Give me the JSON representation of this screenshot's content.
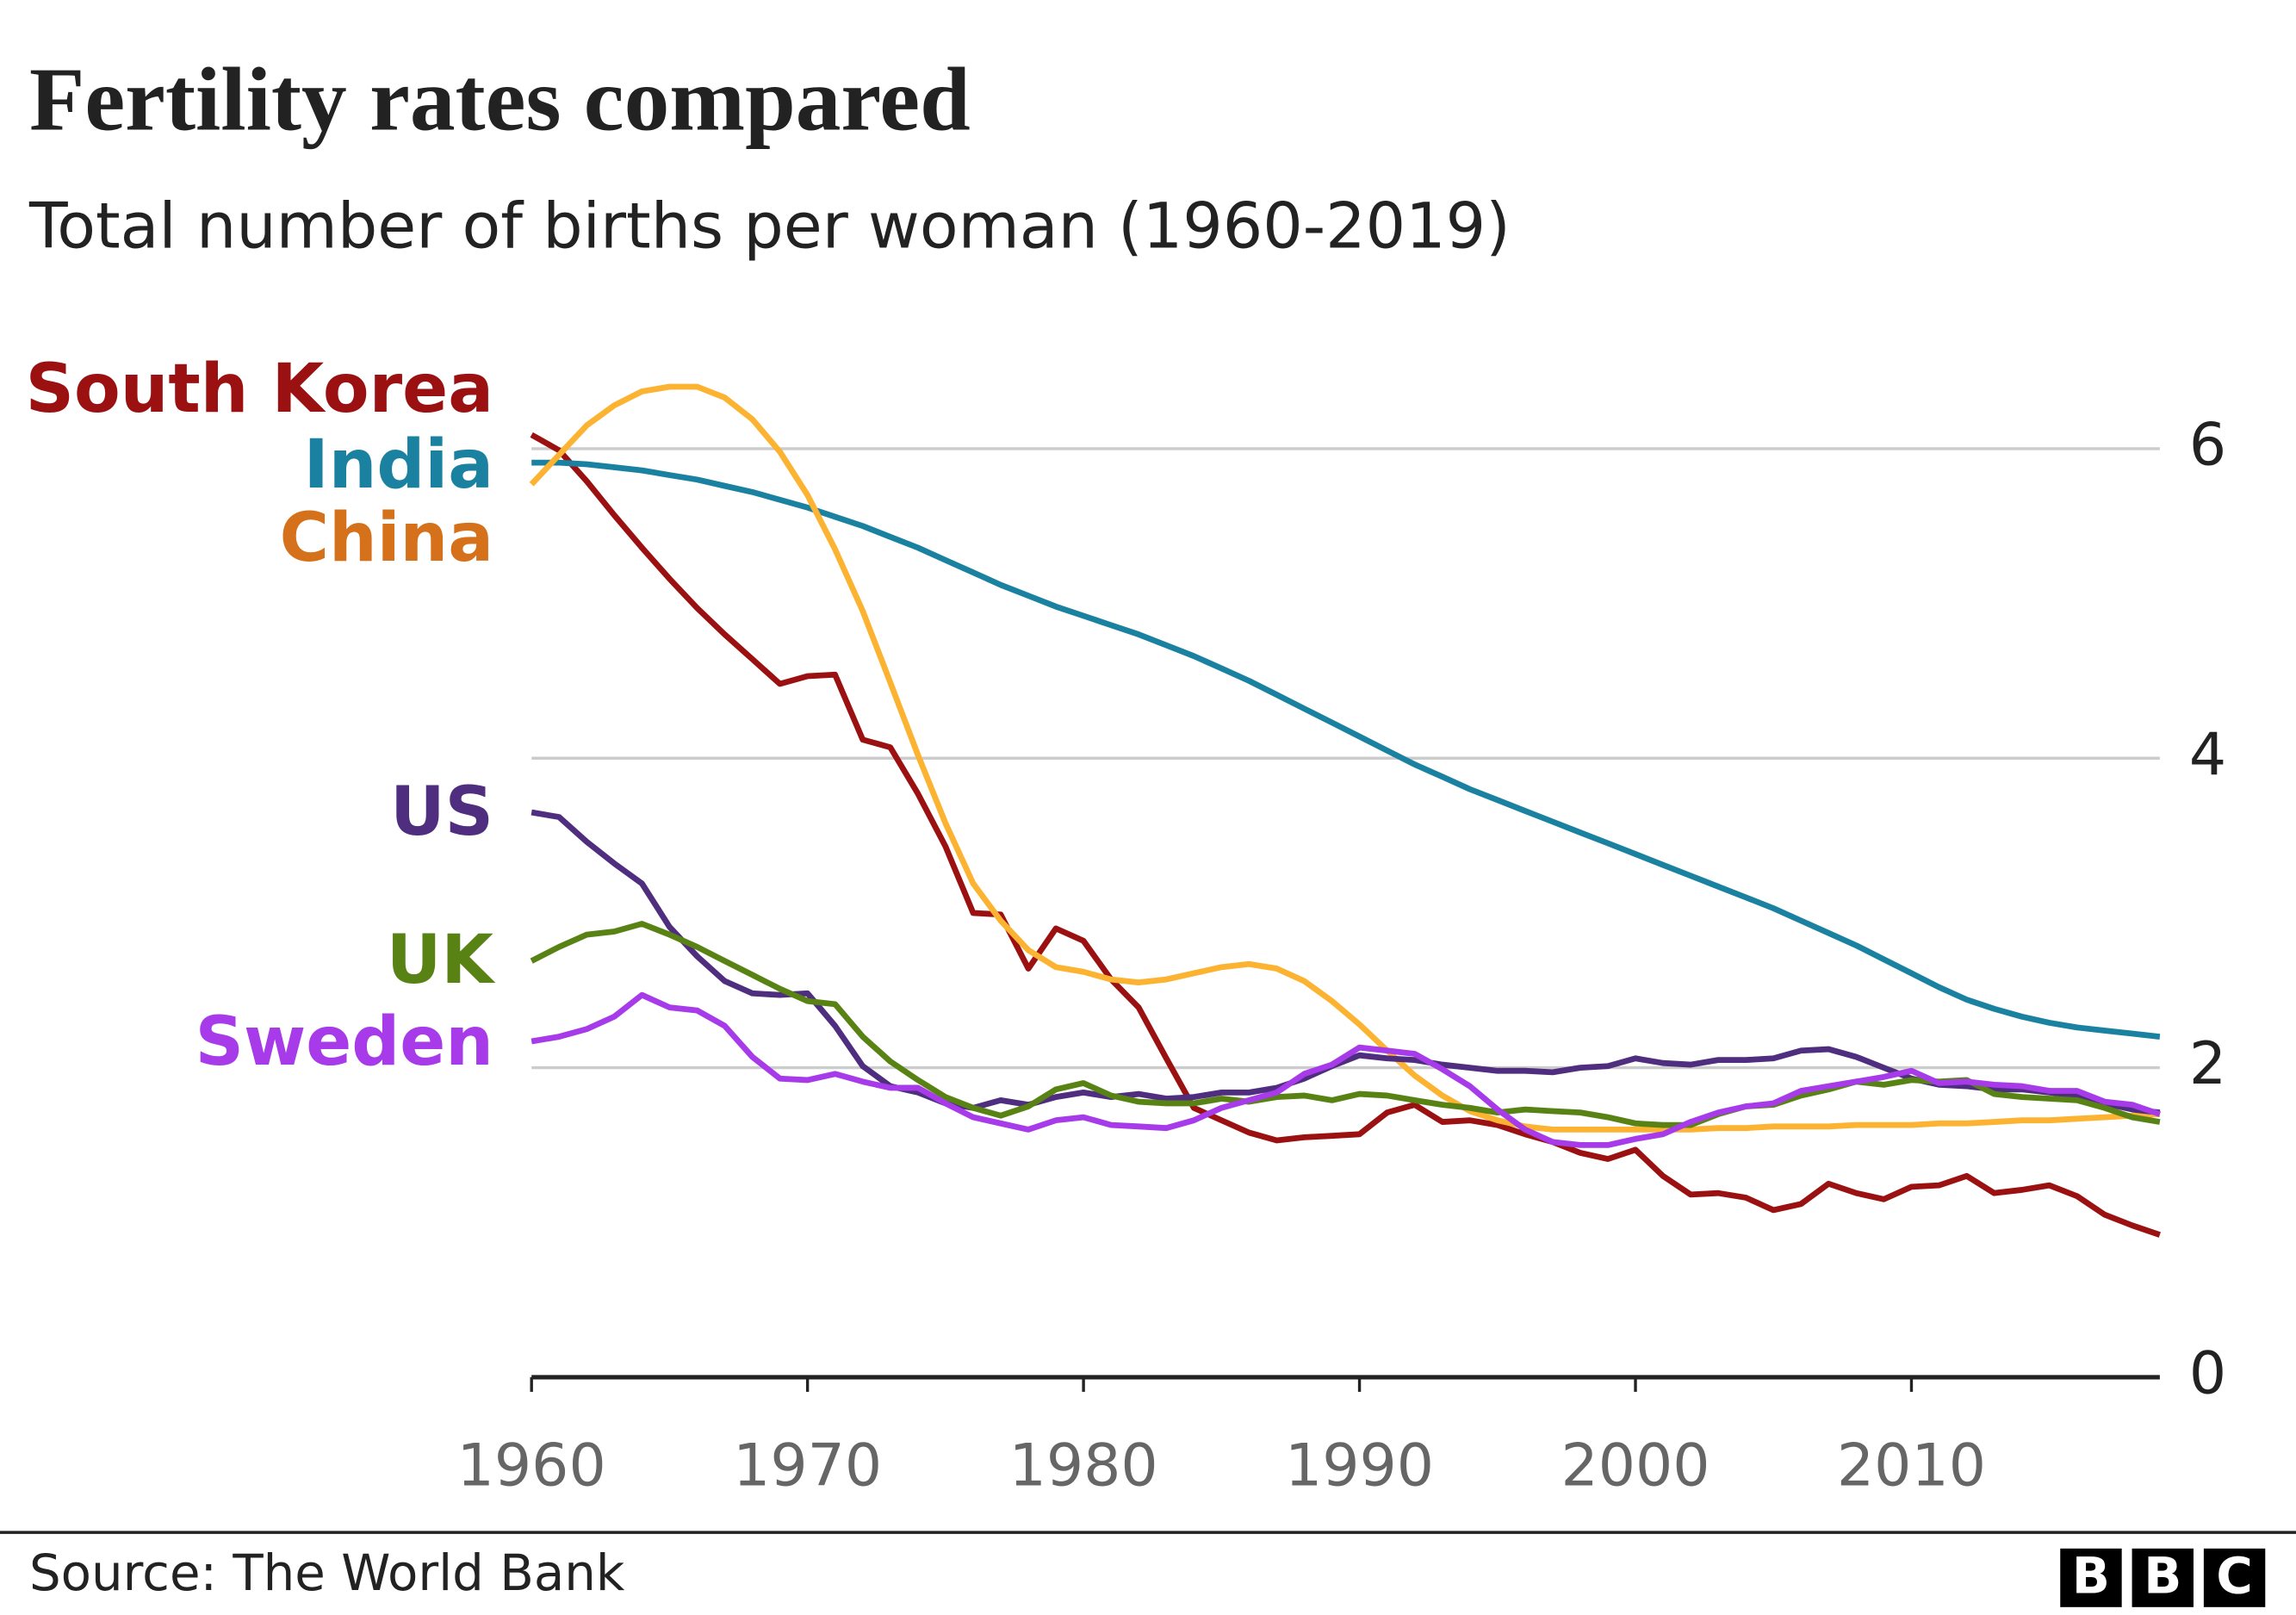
{
  "chart_data": {
    "type": "line",
    "title": "Fertility rates compared",
    "subtitle": "Total number of births per woman (1960-2019)",
    "source": "Source: The World Bank",
    "logo": [
      "B",
      "B",
      "C"
    ],
    "x": [
      1960,
      1961,
      1962,
      1963,
      1964,
      1965,
      1966,
      1967,
      1968,
      1969,
      1970,
      1971,
      1972,
      1973,
      1974,
      1975,
      1976,
      1977,
      1978,
      1979,
      1980,
      1981,
      1982,
      1983,
      1984,
      1985,
      1986,
      1987,
      1988,
      1989,
      1990,
      1991,
      1992,
      1993,
      1994,
      1995,
      1996,
      1997,
      1998,
      1999,
      2000,
      2001,
      2002,
      2003,
      2004,
      2005,
      2006,
      2007,
      2008,
      2009,
      2010,
      2011,
      2012,
      2013,
      2014,
      2015,
      2016,
      2017,
      2018,
      2019
    ],
    "xlim": [
      1960,
      2019
    ],
    "xticks": [
      1960,
      1970,
      1980,
      1990,
      2000,
      2010
    ],
    "ylim": [
      0,
      6
    ],
    "yticks": [
      0,
      2,
      4,
      6
    ],
    "grid": true,
    "series": [
      {
        "name": "South Korea",
        "color": "#9b1111",
        "values": [
          6.09,
          5.99,
          5.79,
          5.57,
          5.36,
          5.16,
          4.97,
          4.8,
          4.64,
          4.48,
          4.53,
          4.54,
          4.12,
          4.07,
          3.77,
          3.43,
          3.0,
          2.99,
          2.64,
          2.9,
          2.82,
          2.57,
          2.39,
          2.06,
          1.74,
          1.66,
          1.58,
          1.53,
          1.55,
          1.56,
          1.57,
          1.71,
          1.76,
          1.65,
          1.66,
          1.63,
          1.57,
          1.52,
          1.45,
          1.41,
          1.47,
          1.3,
          1.18,
          1.19,
          1.16,
          1.08,
          1.12,
          1.25,
          1.19,
          1.15,
          1.23,
          1.24,
          1.3,
          1.19,
          1.21,
          1.24,
          1.17,
          1.05,
          0.98,
          0.92
        ]
      },
      {
        "name": "India",
        "color": "#1a82a0",
        "values": [
          5.91,
          5.91,
          5.9,
          5.88,
          5.86,
          5.83,
          5.8,
          5.76,
          5.72,
          5.67,
          5.62,
          5.56,
          5.5,
          5.43,
          5.36,
          5.28,
          5.2,
          5.12,
          5.05,
          4.98,
          4.92,
          4.86,
          4.8,
          4.73,
          4.66,
          4.58,
          4.5,
          4.41,
          4.32,
          4.23,
          4.14,
          4.05,
          3.96,
          3.88,
          3.8,
          3.73,
          3.66,
          3.59,
          3.52,
          3.45,
          3.38,
          3.31,
          3.24,
          3.17,
          3.1,
          3.03,
          2.95,
          2.87,
          2.79,
          2.7,
          2.61,
          2.52,
          2.44,
          2.38,
          2.33,
          2.29,
          2.26,
          2.24,
          2.22,
          2.2
        ]
      },
      {
        "name": "China",
        "color": "#fbb331",
        "label_color": "#d5711b",
        "values": [
          5.77,
          5.96,
          6.15,
          6.28,
          6.37,
          6.4,
          6.4,
          6.33,
          6.19,
          5.98,
          5.7,
          5.35,
          4.95,
          4.49,
          4.02,
          3.58,
          3.19,
          2.95,
          2.76,
          2.65,
          2.62,
          2.57,
          2.55,
          2.57,
          2.61,
          2.65,
          2.67,
          2.64,
          2.56,
          2.43,
          2.28,
          2.11,
          1.95,
          1.82,
          1.72,
          1.66,
          1.62,
          1.6,
          1.6,
          1.6,
          1.6,
          1.6,
          1.6,
          1.61,
          1.61,
          1.62,
          1.62,
          1.62,
          1.63,
          1.63,
          1.63,
          1.64,
          1.64,
          1.65,
          1.66,
          1.66,
          1.67,
          1.68,
          1.69,
          1.7
        ]
      },
      {
        "name": "US",
        "color": "#4f2d7f",
        "values": [
          3.65,
          3.62,
          3.46,
          3.32,
          3.19,
          2.91,
          2.72,
          2.56,
          2.48,
          2.47,
          2.48,
          2.27,
          2.01,
          1.88,
          1.84,
          1.77,
          1.74,
          1.79,
          1.76,
          1.81,
          1.84,
          1.81,
          1.83,
          1.8,
          1.81,
          1.84,
          1.84,
          1.87,
          1.93,
          2.01,
          2.08,
          2.06,
          2.05,
          2.02,
          2.0,
          1.98,
          1.98,
          1.97,
          2.0,
          2.01,
          2.06,
          2.03,
          2.02,
          2.05,
          2.05,
          2.06,
          2.11,
          2.12,
          2.07,
          2.0,
          1.93,
          1.89,
          1.88,
          1.86,
          1.86,
          1.84,
          1.82,
          1.77,
          1.73,
          1.71
        ]
      },
      {
        "name": "UK",
        "color": "#588314",
        "values": [
          2.69,
          2.78,
          2.86,
          2.88,
          2.93,
          2.86,
          2.78,
          2.69,
          2.6,
          2.51,
          2.43,
          2.41,
          2.2,
          2.04,
          1.92,
          1.81,
          1.74,
          1.69,
          1.75,
          1.86,
          1.9,
          1.82,
          1.78,
          1.77,
          1.77,
          1.8,
          1.78,
          1.81,
          1.82,
          1.79,
          1.83,
          1.82,
          1.79,
          1.76,
          1.74,
          1.71,
          1.73,
          1.72,
          1.71,
          1.68,
          1.64,
          1.63,
          1.63,
          1.7,
          1.75,
          1.76,
          1.82,
          1.86,
          1.91,
          1.89,
          1.92,
          1.91,
          1.92,
          1.83,
          1.81,
          1.8,
          1.79,
          1.74,
          1.68,
          1.65
        ]
      },
      {
        "name": "Sweden",
        "color": "#a73ae9",
        "values": [
          2.17,
          2.2,
          2.25,
          2.33,
          2.47,
          2.39,
          2.37,
          2.27,
          2.07,
          1.93,
          1.92,
          1.96,
          1.91,
          1.87,
          1.87,
          1.77,
          1.68,
          1.64,
          1.6,
          1.66,
          1.68,
          1.63,
          1.62,
          1.61,
          1.66,
          1.74,
          1.79,
          1.84,
          1.96,
          2.02,
          2.13,
          2.11,
          2.09,
          1.99,
          1.88,
          1.73,
          1.6,
          1.52,
          1.5,
          1.5,
          1.54,
          1.57,
          1.65,
          1.71,
          1.75,
          1.77,
          1.85,
          1.88,
          1.91,
          1.94,
          1.98,
          1.9,
          1.91,
          1.89,
          1.88,
          1.85,
          1.85,
          1.78,
          1.76,
          1.7
        ]
      }
    ]
  }
}
